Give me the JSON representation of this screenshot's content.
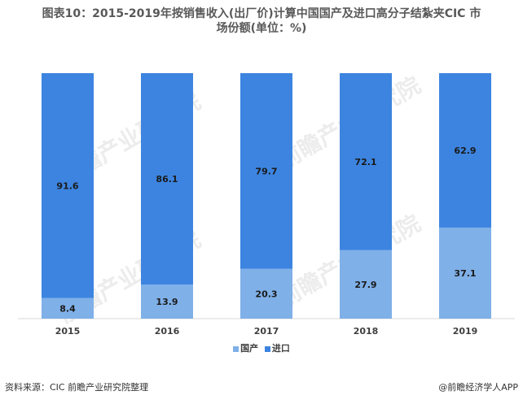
{
  "title_line1": "图表10：2015-2019年按销售收入(出厂价)计算中国国产及进口高分子结紮夹CIC 市",
  "title_line2": "场份额(单位：%)",
  "source": "资料来源：CIC   前瞻产业研究院整理",
  "brand": "@前瞻经济学人APP",
  "watermark_text": "前瞻产业研究院",
  "colors": {
    "domestic": "#7fb0e8",
    "import": "#3c84e0"
  },
  "chart_data": {
    "type": "bar",
    "stacked": true,
    "categories": [
      "2015",
      "2016",
      "2017",
      "2018",
      "2019"
    ],
    "series": [
      {
        "name": "国产",
        "values": [
          8.4,
          13.9,
          20.3,
          27.9,
          37.1
        ]
      },
      {
        "name": "进口",
        "values": [
          91.6,
          86.1,
          79.7,
          72.1,
          62.9
        ]
      }
    ],
    "ylim": [
      0,
      100
    ],
    "legend": "bottom",
    "grid": false
  }
}
